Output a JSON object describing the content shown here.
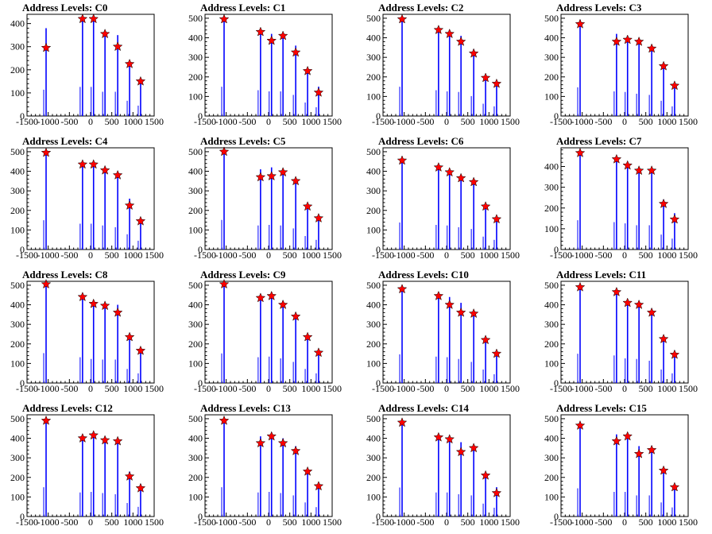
{
  "chart_data": [
    {
      "type": "bar",
      "title": "Address Levels: C0",
      "xlim": [
        -1500,
        1500
      ],
      "ylim": [
        0,
        440
      ],
      "yticks": [
        0,
        100,
        200,
        300,
        400
      ],
      "xticks": [
        -1500,
        -1000,
        -500,
        0,
        500,
        1000,
        1500
      ],
      "xtick_labels": [
        "-1500",
        "-1000",
        "-500",
        "0",
        "500",
        "1000",
        "1500"
      ],
      "series": [
        {
          "x": [
            -1050,
            -190,
            70,
            340,
            640,
            920,
            1180
          ],
          "y": [
            380,
            420,
            420,
            350,
            350,
            220,
            150
          ]
        }
      ],
      "markers": {
        "x": [
          -1050,
          -190,
          70,
          340,
          640,
          920,
          1180
        ],
        "y": [
          295,
          420,
          420,
          355,
          300,
          225,
          150
        ]
      }
    },
    {
      "type": "bar",
      "title": "Address Levels: C1",
      "xlim": [
        -1500,
        1500
      ],
      "ylim": [
        0,
        520
      ],
      "yticks": [
        0,
        100,
        200,
        300,
        400,
        500
      ],
      "xticks": [
        -1500,
        -1000,
        -500,
        0,
        500,
        1000,
        1500
      ],
      "xtick_labels": [
        "-1500",
        "-1000",
        "-500",
        "0",
        "500",
        "1000",
        "1500"
      ],
      "series": [
        {
          "x": [
            -1050,
            -190,
            70,
            340,
            640,
            920,
            1180
          ],
          "y": [
            500,
            440,
            420,
            420,
            360,
            230,
            150
          ]
        }
      ],
      "markers": {
        "x": [
          -1050,
          -190,
          70,
          340,
          640,
          920,
          1180
        ],
        "y": [
          495,
          430,
          385,
          410,
          325,
          230,
          120
        ]
      }
    },
    {
      "type": "bar",
      "title": "Address Levels: C2",
      "xlim": [
        -1500,
        1500
      ],
      "ylim": [
        0,
        520
      ],
      "yticks": [
        0,
        100,
        200,
        300,
        400,
        500
      ],
      "xticks": [
        -1500,
        -1000,
        -500,
        0,
        500,
        1000,
        1500
      ],
      "xtick_labels": [
        "-1500",
        "-1000",
        "-500",
        "0",
        "500",
        "1000",
        "1500"
      ],
      "series": [
        {
          "x": [
            -1050,
            -190,
            70,
            340,
            640,
            920,
            1180
          ],
          "y": [
            500,
            440,
            420,
            410,
            340,
            210,
            165
          ]
        }
      ],
      "markers": {
        "x": [
          -1050,
          -190,
          70,
          340,
          640,
          920,
          1180
        ],
        "y": [
          495,
          440,
          420,
          380,
          320,
          195,
          165
        ]
      }
    },
    {
      "type": "bar",
      "title": "Address Levels: C3",
      "xlim": [
        -1500,
        1500
      ],
      "ylim": [
        0,
        520
      ],
      "yticks": [
        0,
        100,
        200,
        300,
        400,
        500
      ],
      "xticks": [
        -1500,
        -1000,
        -500,
        0,
        500,
        1000,
        1500
      ],
      "xtick_labels": [
        "-1500",
        "-1000",
        "-500",
        "0",
        "500",
        "1000",
        "1500"
      ],
      "series": [
        {
          "x": [
            -1050,
            -190,
            70,
            340,
            640,
            920,
            1180
          ],
          "y": [
            490,
            420,
            410,
            380,
            360,
            260,
            165
          ]
        }
      ],
      "markers": {
        "x": [
          -1050,
          -190,
          70,
          340,
          640,
          920,
          1180
        ],
        "y": [
          470,
          380,
          390,
          380,
          345,
          255,
          155
        ]
      }
    },
    {
      "type": "bar",
      "title": "Address Levels: C4",
      "xlim": [
        -1500,
        1500
      ],
      "ylim": [
        0,
        520
      ],
      "yticks": [
        0,
        100,
        200,
        300,
        400,
        500
      ],
      "xticks": [
        -1500,
        -1000,
        -500,
        0,
        500,
        1000,
        1500
      ],
      "xtick_labels": [
        "-1500",
        "-1000",
        "-500",
        "0",
        "500",
        "1000",
        "1500"
      ],
      "series": [
        {
          "x": [
            -1050,
            -190,
            70,
            340,
            640,
            920,
            1180
          ],
          "y": [
            500,
            440,
            440,
            410,
            380,
            260,
            150
          ]
        }
      ],
      "markers": {
        "x": [
          -1050,
          -190,
          70,
          340,
          640,
          920,
          1180
        ],
        "y": [
          495,
          435,
          435,
          405,
          380,
          225,
          145
        ]
      }
    },
    {
      "type": "bar",
      "title": "Address Levels: C5",
      "xlim": [
        -1500,
        1500
      ],
      "ylim": [
        0,
        520
      ],
      "yticks": [
        0,
        100,
        200,
        300,
        400,
        500
      ],
      "xticks": [
        -1500,
        -1000,
        -500,
        0,
        500,
        1000,
        1500
      ],
      "xtick_labels": [
        "-1500",
        "-1000",
        "-500",
        "0",
        "500",
        "1000",
        "1500"
      ],
      "series": [
        {
          "x": [
            -1050,
            -190,
            70,
            340,
            640,
            920,
            1180
          ],
          "y": [
            505,
            410,
            420,
            410,
            360,
            230,
            165
          ]
        }
      ],
      "markers": {
        "x": [
          -1050,
          -190,
          70,
          340,
          640,
          920,
          1180
        ],
        "y": [
          500,
          370,
          375,
          395,
          350,
          220,
          160
        ]
      }
    },
    {
      "type": "bar",
      "title": "Address Levels: C6",
      "xlim": [
        -1500,
        1500
      ],
      "ylim": [
        0,
        520
      ],
      "yticks": [
        0,
        100,
        200,
        300,
        400,
        500
      ],
      "xticks": [
        -1500,
        -1000,
        -500,
        0,
        500,
        1000,
        1500
      ],
      "xtick_labels": [
        "-1500",
        "-1000",
        "-500",
        "0",
        "500",
        "1000",
        "1500"
      ],
      "series": [
        {
          "x": [
            -1050,
            -190,
            70,
            340,
            640,
            920,
            1180
          ],
          "y": [
            460,
            420,
            410,
            380,
            350,
            220,
            165
          ]
        }
      ],
      "markers": {
        "x": [
          -1050,
          -190,
          70,
          340,
          640,
          920,
          1180
        ],
        "y": [
          455,
          420,
          395,
          365,
          345,
          220,
          155
        ]
      }
    },
    {
      "type": "bar",
      "title": "Address Levels: C7",
      "xlim": [
        -1500,
        1500
      ],
      "ylim": [
        0,
        490
      ],
      "yticks": [
        0,
        100,
        200,
        300,
        400
      ],
      "xticks": [
        -1500,
        -1000,
        -500,
        0,
        500,
        1000,
        1500
      ],
      "xtick_labels": [
        "-1500",
        "-1000",
        "-500",
        "0",
        "500",
        "1000",
        "1500"
      ],
      "series": [
        {
          "x": [
            -1050,
            -190,
            70,
            340,
            640,
            920,
            1180
          ],
          "y": [
            470,
            440,
            420,
            390,
            390,
            240,
            175
          ]
        }
      ],
      "markers": {
        "x": [
          -1050,
          -190,
          70,
          340,
          640,
          920,
          1180
        ],
        "y": [
          465,
          435,
          405,
          380,
          380,
          220,
          145
        ]
      }
    },
    {
      "type": "bar",
      "title": "Address Levels: C8",
      "xlim": [
        -1500,
        1500
      ],
      "ylim": [
        0,
        520
      ],
      "yticks": [
        0,
        100,
        200,
        300,
        400,
        500
      ],
      "xticks": [
        -1500,
        -1000,
        -500,
        0,
        500,
        1000,
        1500
      ],
      "xtick_labels": [
        "-1500",
        "-1000",
        "-500",
        "0",
        "500",
        "1000",
        "1500"
      ],
      "series": [
        {
          "x": [
            -1050,
            -190,
            70,
            340,
            640,
            920,
            1180
          ],
          "y": [
            510,
            440,
            410,
            400,
            400,
            240,
            165
          ]
        }
      ],
      "markers": {
        "x": [
          -1050,
          -190,
          70,
          340,
          640,
          920,
          1180
        ],
        "y": [
          505,
          440,
          405,
          395,
          360,
          235,
          165
        ]
      }
    },
    {
      "type": "bar",
      "title": "Address Levels: C9",
      "xlim": [
        -1500,
        1500
      ],
      "ylim": [
        0,
        520
      ],
      "yticks": [
        0,
        100,
        200,
        300,
        400,
        500
      ],
      "xticks": [
        -1500,
        -1000,
        -500,
        0,
        500,
        1000,
        1500
      ],
      "xtick_labels": [
        "-1500",
        "-1000",
        "-500",
        "0",
        "500",
        "1000",
        "1500"
      ],
      "series": [
        {
          "x": [
            -1050,
            -190,
            70,
            340,
            640,
            920,
            1180
          ],
          "y": [
            505,
            440,
            450,
            420,
            360,
            240,
            165
          ]
        }
      ],
      "markers": {
        "x": [
          -1050,
          -190,
          70,
          340,
          640,
          920,
          1180
        ],
        "y": [
          505,
          435,
          445,
          400,
          340,
          235,
          155
        ]
      }
    },
    {
      "type": "bar",
      "title": "Address Levels: C10",
      "xlim": [
        -1500,
        1500
      ],
      "ylim": [
        0,
        520
      ],
      "yticks": [
        0,
        100,
        200,
        300,
        400,
        500
      ],
      "xticks": [
        -1500,
        -1000,
        -500,
        0,
        500,
        1000,
        1500
      ],
      "xtick_labels": [
        "-1500",
        "-1000",
        "-500",
        "0",
        "500",
        "1000",
        "1500"
      ],
      "series": [
        {
          "x": [
            -1050,
            -190,
            70,
            340,
            640,
            920,
            1180
          ],
          "y": [
            490,
            450,
            440,
            410,
            360,
            230,
            150
          ]
        }
      ],
      "markers": {
        "x": [
          -1050,
          -190,
          70,
          340,
          640,
          920,
          1180
        ],
        "y": [
          480,
          445,
          400,
          360,
          355,
          220,
          150
        ]
      }
    },
    {
      "type": "bar",
      "title": "Address Levels: C11",
      "xlim": [
        -1500,
        1500
      ],
      "ylim": [
        0,
        520
      ],
      "yticks": [
        0,
        100,
        200,
        300,
        400,
        500
      ],
      "xticks": [
        -1500,
        -1000,
        -500,
        0,
        500,
        1000,
        1500
      ],
      "xtick_labels": [
        "-1500",
        "-1000",
        "-500",
        "0",
        "500",
        "1000",
        "1500"
      ],
      "series": [
        {
          "x": [
            -1050,
            -190,
            70,
            340,
            640,
            920,
            1180
          ],
          "y": [
            500,
            470,
            420,
            410,
            380,
            230,
            165
          ]
        }
      ],
      "markers": {
        "x": [
          -1050,
          -190,
          70,
          340,
          640,
          920,
          1180
        ],
        "y": [
          490,
          465,
          410,
          400,
          360,
          225,
          145
        ]
      }
    },
    {
      "type": "bar",
      "title": "Address Levels: C12",
      "xlim": [
        -1500,
        1500
      ],
      "ylim": [
        0,
        520
      ],
      "yticks": [
        0,
        100,
        200,
        300,
        400,
        500
      ],
      "xticks": [
        -1500,
        -1000,
        -500,
        0,
        500,
        1000,
        1500
      ],
      "xtick_labels": [
        "-1500",
        "-1000",
        "-500",
        "0",
        "500",
        "1000",
        "1500"
      ],
      "series": [
        {
          "x": [
            -1050,
            -190,
            70,
            340,
            640,
            920,
            1180
          ],
          "y": [
            500,
            410,
            420,
            400,
            380,
            230,
            165
          ]
        }
      ],
      "markers": {
        "x": [
          -1050,
          -190,
          70,
          340,
          640,
          920,
          1180
        ],
        "y": [
          490,
          400,
          415,
          390,
          385,
          205,
          145
        ]
      }
    },
    {
      "type": "bar",
      "title": "Address Levels: C13",
      "xlim": [
        -1500,
        1500
      ],
      "ylim": [
        0,
        520
      ],
      "yticks": [
        0,
        100,
        200,
        300,
        400,
        500
      ],
      "xticks": [
        -1500,
        -1000,
        -500,
        0,
        500,
        1000,
        1500
      ],
      "xtick_labels": [
        "-1500",
        "-1000",
        "-500",
        "0",
        "500",
        "1000",
        "1500"
      ],
      "series": [
        {
          "x": [
            -1050,
            -190,
            70,
            340,
            640,
            920,
            1180
          ],
          "y": [
            500,
            410,
            420,
            400,
            360,
            240,
            160
          ]
        }
      ],
      "markers": {
        "x": [
          -1050,
          -190,
          70,
          340,
          640,
          920,
          1180
        ],
        "y": [
          490,
          375,
          410,
          375,
          335,
          230,
          155
        ]
      }
    },
    {
      "type": "bar",
      "title": "Address Levels: C14",
      "xlim": [
        -1500,
        1500
      ],
      "ylim": [
        0,
        520
      ],
      "yticks": [
        0,
        100,
        200,
        300,
        400,
        500
      ],
      "xticks": [
        -1500,
        -1000,
        -500,
        0,
        500,
        1000,
        1500
      ],
      "xtick_labels": [
        "-1500",
        "-1000",
        "-500",
        "0",
        "500",
        "1000",
        "1500"
      ],
      "series": [
        {
          "x": [
            -1050,
            -190,
            70,
            340,
            640,
            920,
            1180
          ],
          "y": [
            495,
            410,
            410,
            380,
            360,
            220,
            150
          ]
        }
      ],
      "markers": {
        "x": [
          -1050,
          -190,
          70,
          340,
          640,
          920,
          1180
        ],
        "y": [
          480,
          405,
          395,
          330,
          350,
          210,
          120
        ]
      }
    },
    {
      "type": "bar",
      "title": "Address Levels: C15",
      "xlim": [
        -1500,
        1500
      ],
      "ylim": [
        0,
        520
      ],
      "yticks": [
        0,
        100,
        200,
        300,
        400,
        500
      ],
      "xticks": [
        -1500,
        -1000,
        -500,
        0,
        500,
        1000,
        1500
      ],
      "xtick_labels": [
        "-1500",
        "-1000",
        "-500",
        "0",
        "500",
        "1000",
        "1500"
      ],
      "series": [
        {
          "x": [
            -1050,
            -190,
            70,
            340,
            640,
            920,
            1180
          ],
          "y": [
            480,
            420,
            420,
            360,
            360,
            240,
            155
          ]
        }
      ],
      "markers": {
        "x": [
          -1050,
          -190,
          70,
          340,
          640,
          920,
          1180
        ],
        "y": [
          465,
          385,
          410,
          320,
          340,
          235,
          150
        ]
      }
    }
  ],
  "colors": {
    "bar": "#0000ff",
    "marker": "#ff0000",
    "marker_stroke": "#000000",
    "axis": "#000000"
  }
}
